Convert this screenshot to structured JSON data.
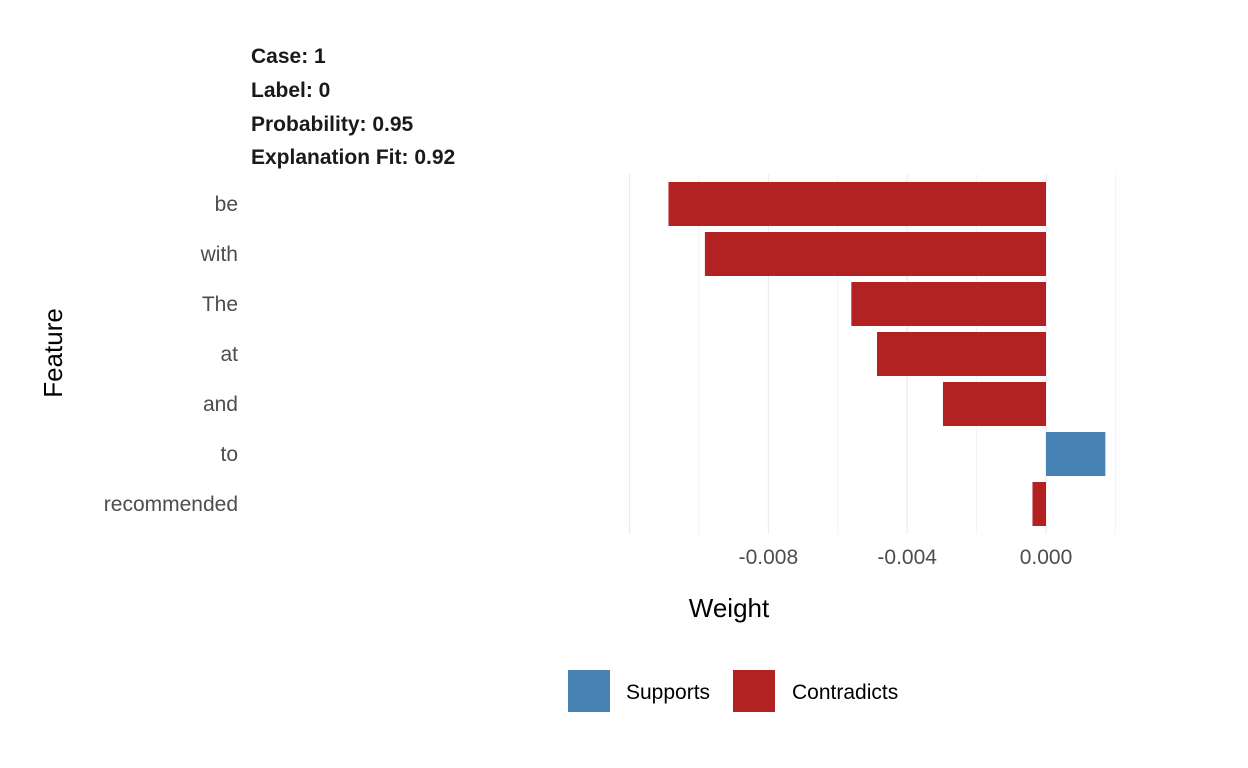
{
  "header": {
    "case": "Case: 1",
    "label": "Label: 0",
    "probability": "Probability: 0.95",
    "fit": "Explanation Fit: 0.92"
  },
  "colors": {
    "supports": "#4682B4",
    "contradicts": "#B22222",
    "grid": "#ebebeb",
    "text": "#4d4d4d"
  },
  "chart_data": {
    "type": "bar",
    "orientation": "horizontal",
    "xlabel": "Weight",
    "ylabel": "Feature",
    "xlim": [
      -0.0109,
      0.002
    ],
    "x_ticks": [
      -0.008,
      -0.004,
      0.0
    ],
    "x_tick_labels": [
      "-0.008",
      "-0.004",
      "0.000"
    ],
    "grid": true,
    "legend_position": "bottom",
    "categories": [
      "be",
      "with",
      "The",
      "at",
      "and",
      "to",
      "recommended"
    ],
    "values": [
      -0.01088,
      -0.00983,
      -0.00561,
      -0.00487,
      -0.00297,
      0.00171,
      -0.00039
    ],
    "series": [
      {
        "name": "Supports",
        "color": "#4682B4"
      },
      {
        "name": "Contradicts",
        "color": "#B22222"
      }
    ]
  }
}
